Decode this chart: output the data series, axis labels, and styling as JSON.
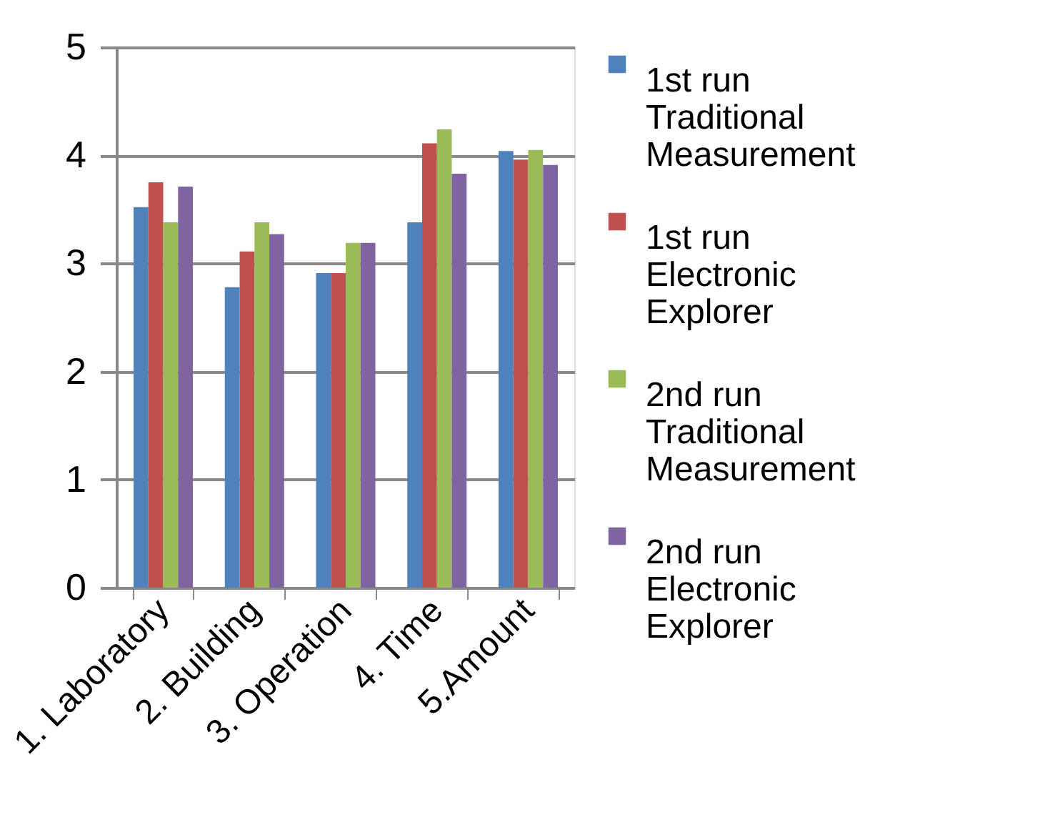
{
  "chart_data": {
    "type": "bar",
    "categories": [
      "1. Laboratory",
      "2. Building",
      "3. Operation",
      "4. Time",
      "5.Amount"
    ],
    "series": [
      {
        "name": "1st run Traditional Measurement",
        "color": "#4f81bd",
        "values": [
          3.52,
          2.78,
          2.91,
          3.38,
          4.04
        ]
      },
      {
        "name": "1st run Electronic Explorer",
        "color": "#c0504d",
        "values": [
          3.75,
          3.11,
          2.91,
          4.11,
          3.96
        ]
      },
      {
        "name": "2nd run Traditional Measurement",
        "color": "#9bbb59",
        "values": [
          3.38,
          3.38,
          3.19,
          4.24,
          4.05
        ]
      },
      {
        "name": "2nd run Electronic Explorer",
        "color": "#8064a2",
        "values": [
          3.71,
          3.27,
          3.19,
          3.83,
          3.91
        ]
      }
    ],
    "ylim": [
      0,
      5
    ],
    "yticks": [
      0,
      1,
      2,
      3,
      4,
      5
    ],
    "grid": "y",
    "legend": "right"
  }
}
